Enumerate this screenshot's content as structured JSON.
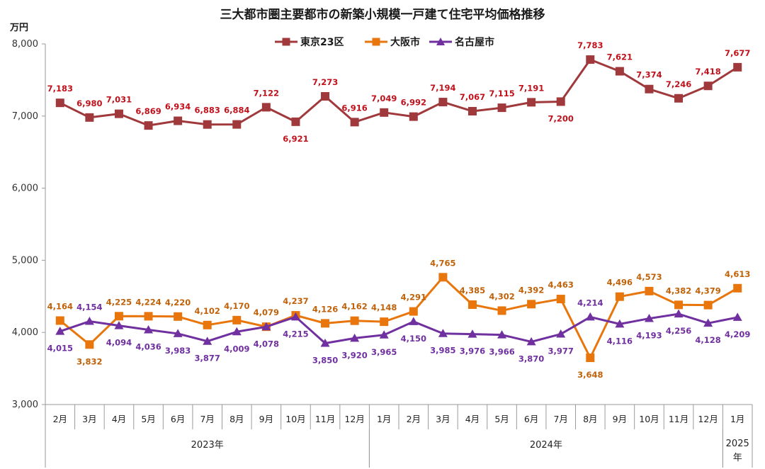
{
  "chart_data": {
    "type": "line",
    "title": "三大都市圏主要都市の新築小規模一戸建て住宅平均価格推移",
    "unit_label": "万円",
    "ylim": [
      3000,
      8000
    ],
    "yticks": [
      3000,
      4000,
      5000,
      6000,
      7000,
      8000
    ],
    "ytick_labels": [
      "3,000",
      "4,000",
      "5,000",
      "6,000",
      "7,000",
      "8,000"
    ],
    "categories": [
      "2月",
      "3月",
      "4月",
      "5月",
      "6月",
      "7月",
      "8月",
      "9月",
      "10月",
      "11月",
      "12月",
      "1月",
      "2月",
      "3月",
      "4月",
      "5月",
      "6月",
      "7月",
      "8月",
      "9月",
      "10月",
      "11月",
      "12月",
      "1月"
    ],
    "years": [
      {
        "label": "2023年",
        "start": 0,
        "end": 10
      },
      {
        "label": "2024年",
        "start": 11,
        "end": 22
      },
      {
        "label": "2025年",
        "start": 23,
        "end": 23
      }
    ],
    "series": [
      {
        "name": "東京23区",
        "color": "#A0393C",
        "label_color": "#C0121C",
        "marker": "square",
        "values": [
          7183,
          6980,
          7031,
          6869,
          6934,
          6883,
          6884,
          7122,
          6921,
          7273,
          6916,
          7049,
          6992,
          7194,
          7067,
          7115,
          7191,
          7200,
          7783,
          7621,
          7374,
          7246,
          7418,
          7677
        ],
        "labels": [
          "7,183",
          "6,980",
          "7,031",
          "6,869",
          "6,934",
          "6,883",
          "6,884",
          "7,122",
          "6,921",
          "7,273",
          "6,916",
          "7,049",
          "6,992",
          "7,194",
          "7,067",
          "7,115",
          "7,191",
          "7,200",
          "7,783",
          "7,621",
          "7,374",
          "7,246",
          "7,418",
          "7,677"
        ],
        "label_pos": [
          "above",
          "above",
          "above",
          "above",
          "above",
          "above",
          "above",
          "above",
          "below",
          "above",
          "above",
          "above",
          "above",
          "above",
          "above",
          "above",
          "above",
          "below",
          "above",
          "above",
          "above",
          "above",
          "above",
          "above"
        ]
      },
      {
        "name": "大阪市",
        "color": "#E8760C",
        "label_color": "#C0620A",
        "marker": "square",
        "values": [
          4164,
          3832,
          4225,
          4224,
          4220,
          4102,
          4170,
          4079,
          4237,
          4126,
          4162,
          4148,
          4291,
          4765,
          4385,
          4302,
          4392,
          4463,
          3648,
          4496,
          4573,
          4382,
          4379,
          4613
        ],
        "labels": [
          "4,164",
          "3,832",
          "4,225",
          "4,224",
          "4,220",
          "4,102",
          "4,170",
          "4,079",
          "4,237",
          "4,126",
          "4,162",
          "4,148",
          "4,291",
          "4,765",
          "4,385",
          "4,302",
          "4,392",
          "4,463",
          "3,648",
          "4,496",
          "4,573",
          "4,382",
          "4,379",
          "4,613"
        ],
        "label_pos": [
          "above",
          "below",
          "above",
          "above",
          "above",
          "above",
          "above",
          "above",
          "above",
          "above",
          "above",
          "above",
          "above",
          "above",
          "above",
          "above",
          "above",
          "above",
          "below",
          "above",
          "above",
          "above",
          "above",
          "above"
        ]
      },
      {
        "name": "名古屋市",
        "color": "#7030A0",
        "label_color": "#7030A0",
        "marker": "triangle",
        "values": [
          4015,
          4154,
          4094,
          4036,
          3983,
          3877,
          4009,
          4078,
          4215,
          3850,
          3920,
          3965,
          4150,
          3985,
          3976,
          3966,
          3870,
          3977,
          4214,
          4116,
          4193,
          4256,
          4128,
          4209
        ],
        "labels": [
          "4,015",
          "4,154",
          "4,094",
          "4,036",
          "3,983",
          "3,877",
          "4,009",
          "4,078",
          "4,215",
          "3,850",
          "3,920",
          "3,965",
          "4,150",
          "3,985",
          "3,976",
          "3,966",
          "3,870",
          "3,977",
          "4,214",
          "4,116",
          "4,193",
          "4,256",
          "4,128",
          "4,209"
        ],
        "label_pos": [
          "below",
          "above",
          "below",
          "below",
          "below",
          "below",
          "below",
          "below",
          "below",
          "below",
          "below",
          "below",
          "below",
          "below",
          "below",
          "below",
          "below",
          "below",
          "above",
          "below",
          "below",
          "below",
          "below",
          "below"
        ]
      }
    ]
  }
}
